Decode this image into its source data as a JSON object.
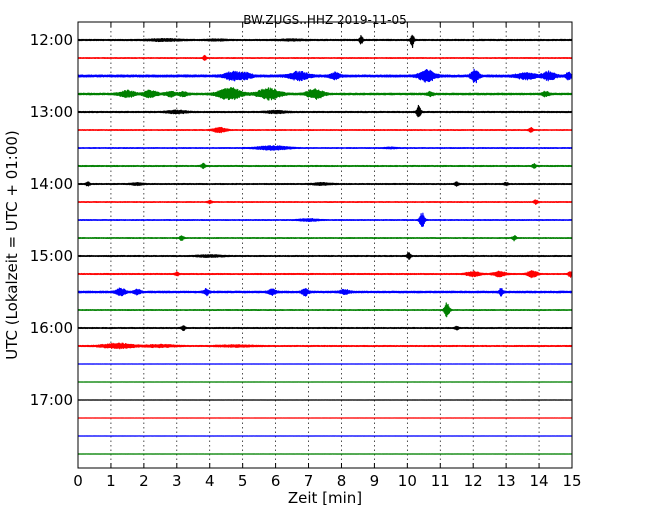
{
  "chart_data": {
    "type": "line",
    "title": "BW.ZUGS..HHZ 2019-11-05",
    "xlabel": "Zeit  [min]",
    "ylabel": "UTC (Lokalzeit = UTC + 01:00)",
    "xlim": [
      0,
      15
    ],
    "x_ticks": [
      "0",
      "1",
      "2",
      "3",
      "4",
      "5",
      "6",
      "7",
      "8",
      "9",
      "10",
      "11",
      "12",
      "13",
      "14",
      "15"
    ],
    "y_ticks": [
      "12:00",
      "13:00",
      "14:00",
      "15:00",
      "16:00",
      "17:00"
    ],
    "grid": "vertical dotted",
    "trace_colors": [
      "#000000",
      "#ff0000",
      "#0000ff",
      "#008000"
    ],
    "traces": [
      {
        "start": "12:00",
        "color": "#000000",
        "noise": 0.6,
        "events": [
          [
            2.6,
            1.0,
            0.5
          ],
          [
            4.2,
            0.6,
            0.3
          ],
          [
            6.5,
            0.6,
            0.4
          ],
          [
            8.6,
            4.5,
            0.05
          ],
          [
            10.15,
            7.5,
            0.05
          ]
        ]
      },
      {
        "start": "12:15",
        "color": "#ff0000",
        "noise": 0.4,
        "events": [
          [
            3.85,
            2.5,
            0.05
          ]
        ]
      },
      {
        "start": "12:30",
        "color": "#0000ff",
        "noise": 1.0,
        "events": [
          [
            4.7,
            4,
            0.25
          ],
          [
            5.1,
            2.5,
            0.2
          ],
          [
            6.7,
            4,
            0.3
          ],
          [
            7.8,
            3,
            0.15
          ],
          [
            10.6,
            5.5,
            0.25
          ],
          [
            12.05,
            6.5,
            0.12
          ],
          [
            13.6,
            3,
            0.3
          ],
          [
            14.3,
            4,
            0.2
          ],
          [
            14.9,
            3,
            0.1
          ]
        ]
      },
      {
        "start": "12:45",
        "color": "#008000",
        "noise": 0.8,
        "events": [
          [
            1.5,
            3,
            0.25
          ],
          [
            2.2,
            3.5,
            0.2
          ],
          [
            2.8,
            2.5,
            0.15
          ],
          [
            3.2,
            2,
            0.15
          ],
          [
            4.6,
            6,
            0.35
          ],
          [
            5.8,
            5.5,
            0.35
          ],
          [
            7.2,
            5,
            0.25
          ],
          [
            10.7,
            2,
            0.1
          ],
          [
            14.2,
            2.5,
            0.1
          ]
        ]
      },
      {
        "start": "13:00",
        "color": "#000000",
        "noise": 0.6,
        "events": [
          [
            3.0,
            1.5,
            0.3
          ],
          [
            6.0,
            1.2,
            0.3
          ],
          [
            10.35,
            7,
            0.06
          ]
        ]
      },
      {
        "start": "13:15",
        "color": "#ff0000",
        "noise": 0.4,
        "events": [
          [
            4.3,
            2.5,
            0.2
          ],
          [
            13.75,
            3,
            0.06
          ]
        ]
      },
      {
        "start": "13:30",
        "color": "#0000ff",
        "noise": 0.4,
        "events": [
          [
            5.9,
            2,
            0.5
          ],
          [
            9.5,
            0.6,
            0.2
          ]
        ]
      },
      {
        "start": "13:45",
        "color": "#008000",
        "noise": 0.5,
        "events": [
          [
            3.8,
            2.5,
            0.06
          ],
          [
            13.85,
            2,
            0.06
          ]
        ]
      },
      {
        "start": "14:00",
        "color": "#000000",
        "noise": 0.5,
        "events": [
          [
            0.3,
            2,
            0.06
          ],
          [
            1.8,
            1,
            0.2
          ],
          [
            7.4,
            1,
            0.3
          ],
          [
            11.5,
            2,
            0.06
          ],
          [
            13.0,
            1.5,
            0.06
          ]
        ]
      },
      {
        "start": "14:15",
        "color": "#ff0000",
        "noise": 0.4,
        "events": [
          [
            4.0,
            2,
            0.06
          ],
          [
            13.9,
            2,
            0.06
          ]
        ]
      },
      {
        "start": "14:30",
        "color": "#0000ff",
        "noise": 0.4,
        "events": [
          [
            7.0,
            1.2,
            0.3
          ],
          [
            10.45,
            7,
            0.08
          ]
        ]
      },
      {
        "start": "14:45",
        "color": "#008000",
        "noise": 0.4,
        "events": [
          [
            3.15,
            2.5,
            0.06
          ],
          [
            13.25,
            2.5,
            0.06
          ]
        ]
      },
      {
        "start": "15:00",
        "color": "#000000",
        "noise": 0.5,
        "events": [
          [
            4.0,
            1,
            0.4
          ],
          [
            10.05,
            3,
            0.06
          ]
        ]
      },
      {
        "start": "15:15",
        "color": "#ff0000",
        "noise": 0.5,
        "events": [
          [
            3.0,
            2,
            0.06
          ],
          [
            12.0,
            2.5,
            0.2
          ],
          [
            12.8,
            2.5,
            0.2
          ],
          [
            13.8,
            3.5,
            0.15
          ],
          [
            14.95,
            3,
            0.06
          ]
        ]
      },
      {
        "start": "15:30",
        "color": "#0000ff",
        "noise": 0.8,
        "events": [
          [
            1.3,
            3.5,
            0.15
          ],
          [
            1.8,
            2.5,
            0.1
          ],
          [
            3.9,
            3,
            0.08
          ],
          [
            5.9,
            3,
            0.12
          ],
          [
            6.9,
            3.5,
            0.1
          ],
          [
            8.1,
            2,
            0.15
          ],
          [
            12.85,
            3.5,
            0.06
          ]
        ]
      },
      {
        "start": "15:45",
        "color": "#008000",
        "noise": 0.4,
        "events": [
          [
            11.2,
            7.5,
            0.08
          ]
        ]
      },
      {
        "start": "16:00",
        "color": "#000000",
        "noise": 0.5,
        "events": [
          [
            3.2,
            2.5,
            0.06
          ],
          [
            11.5,
            1.5,
            0.06
          ]
        ]
      },
      {
        "start": "16:15",
        "color": "#ff0000",
        "noise": 0.5,
        "events": [
          [
            1.2,
            2.5,
            0.5
          ],
          [
            2.5,
            1.2,
            0.5
          ],
          [
            4.8,
            0.8,
            0.6
          ]
        ]
      },
      {
        "start": "16:30",
        "color": "#0000ff",
        "noise": 0.15,
        "events": []
      },
      {
        "start": "16:45",
        "color": "#008000",
        "noise": 0.15,
        "events": []
      },
      {
        "start": "17:00",
        "color": "#000000",
        "noise": 0.15,
        "events": []
      },
      {
        "start": "17:15",
        "color": "#ff0000",
        "noise": 0.15,
        "events": []
      },
      {
        "start": "17:30",
        "color": "#0000ff",
        "noise": 0.15,
        "events": []
      },
      {
        "start": "17:45",
        "color": "#008000",
        "noise": 0.15,
        "events": []
      }
    ]
  }
}
